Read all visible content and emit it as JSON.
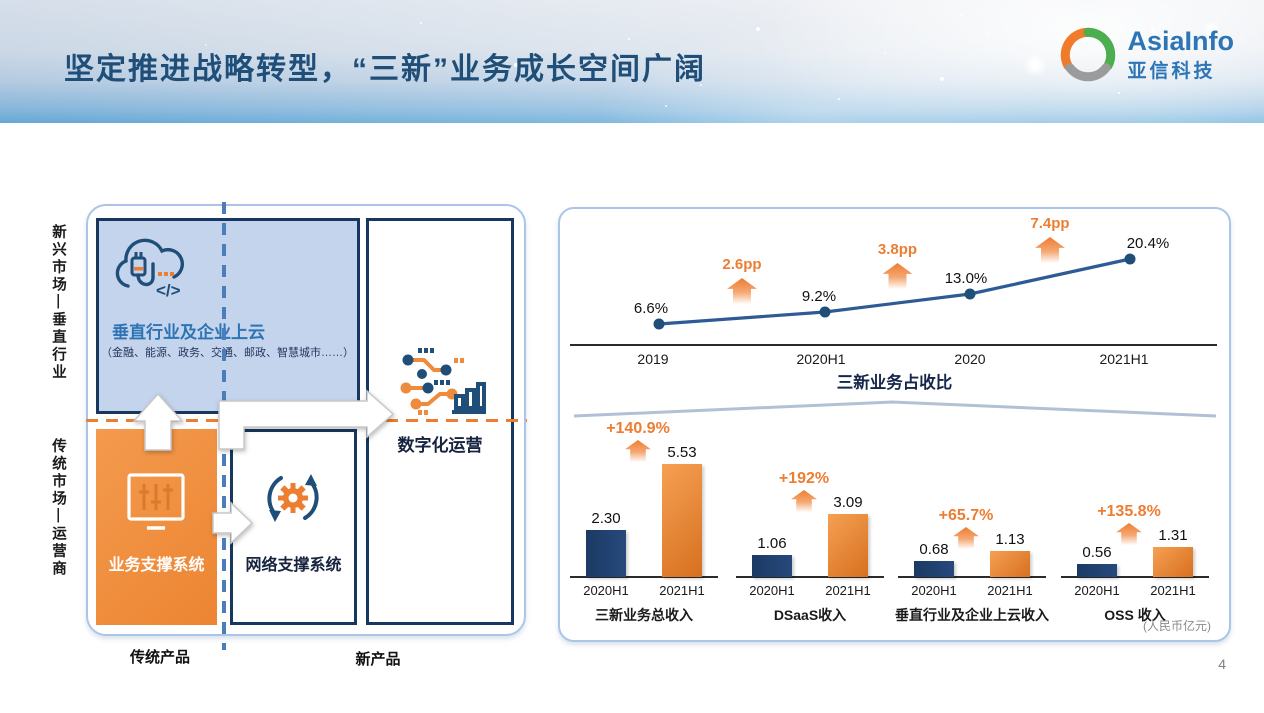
{
  "header": {
    "title": "坚定推进战略转型，“三新”业务成长空间广阔",
    "logo": {
      "name_en": "AsiaInfo",
      "name_zh": "亚信科技"
    }
  },
  "diagram": {
    "side_labels": {
      "top": "新兴市场—垂直行业",
      "bottom": "传统市场—运营商"
    },
    "boxes": {
      "cloud": {
        "title": "垂直行业及企业上云",
        "subtitle": "（金融、能源、政务、交通、邮政、智慧城市……）"
      },
      "bss": {
        "label": "业务支撑系统"
      },
      "network": {
        "label": "网络支撑系统"
      },
      "digital": {
        "label": "数字化运营"
      }
    },
    "bottom_labels": {
      "left": "传统产品",
      "right": "新产品"
    }
  },
  "chart_data": [
    {
      "type": "line",
      "title": "三新业务占收比",
      "x": [
        "2019",
        "2020H1",
        "2020",
        "2021H1"
      ],
      "values": [
        6.6,
        9.2,
        13.0,
        20.4
      ],
      "point_labels": [
        "6.6%",
        "9.2%",
        "13.0%",
        "20.4%"
      ],
      "deltas": [
        "2.6pp",
        "3.8pp",
        "7.4pp"
      ],
      "ylabel": "",
      "xlabel": "",
      "grid": false,
      "legend": "none"
    },
    {
      "type": "bar",
      "categories": [
        "2020H1",
        "2021H1"
      ],
      "unit": "(人民币亿元)",
      "groups": [
        {
          "title": "三新业务总收入",
          "values": [
            2.3,
            5.53
          ],
          "labels": [
            "2.30",
            "5.53"
          ],
          "growth": "+140.9%"
        },
        {
          "title": "DSaaS收入",
          "values": [
            1.06,
            3.09
          ],
          "labels": [
            "1.06",
            "3.09"
          ],
          "growth": "+192%"
        },
        {
          "title": "垂直行业及企业上云收入",
          "values": [
            0.68,
            1.13
          ],
          "labels": [
            "0.68",
            "1.13"
          ],
          "growth": "+65.7%"
        },
        {
          "title": "OSS 收入",
          "values": [
            0.56,
            1.31
          ],
          "labels": [
            "0.56",
            "1.31"
          ],
          "growth": "+135.8%"
        }
      ]
    }
  ],
  "colors": {
    "navy": "#1f4068",
    "navy_border": "#17375e",
    "line_blue": "#2e5b95",
    "orange": "#ed7d31",
    "light_blue_fill": "#c3d4ec",
    "panel_border": "#a9c6e8",
    "title_navy": "#1f4e79",
    "bar_navy": "#1f4571",
    "bar_orange": "#e0802e"
  },
  "page_number": "4"
}
